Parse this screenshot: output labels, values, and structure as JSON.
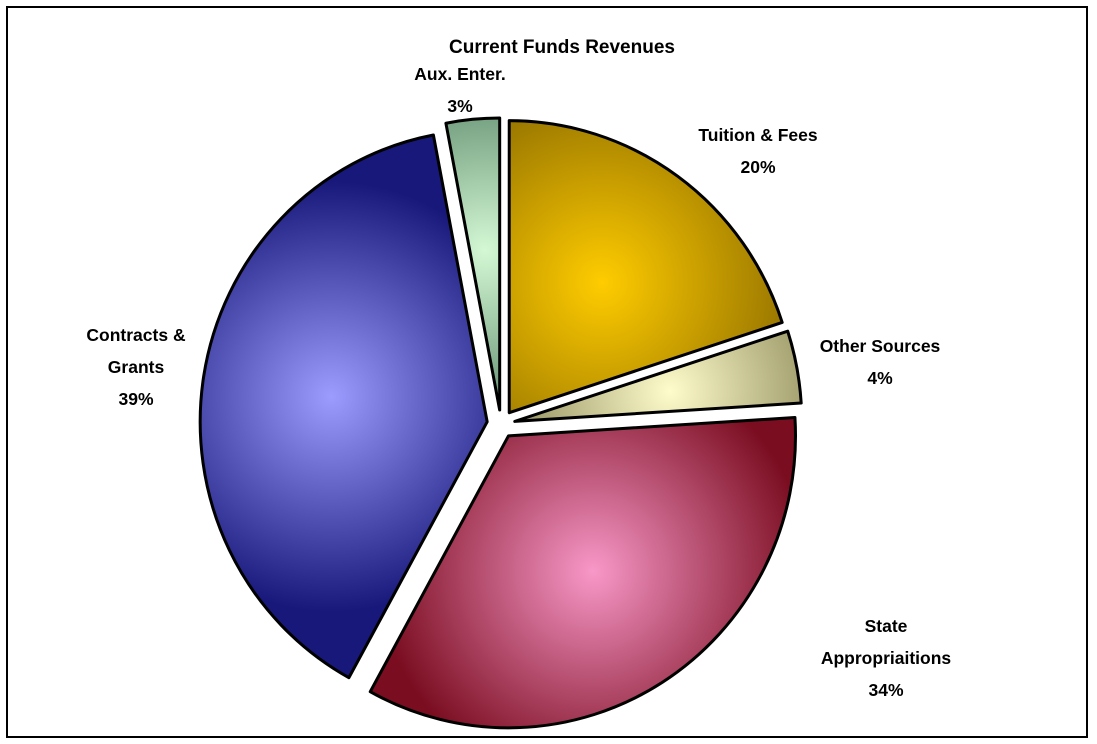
{
  "chart_data": {
    "type": "pie",
    "title": "Current Funds Revenues",
    "slices": [
      {
        "label": "Tuition & Fees",
        "percent_label": "20%",
        "value": 20,
        "color_dark": "#8a6a00",
        "color_light": "#ffcc00"
      },
      {
        "label": "Other Sources",
        "percent_label": "4%",
        "value": 4,
        "color_dark": "#6e6a3a",
        "color_light": "#fffccc"
      },
      {
        "label": "State Appropriaitions",
        "percent_label": "34%",
        "value": 34,
        "color_dark": "#7a0d20",
        "color_light": "#f898c8"
      },
      {
        "label": "Contracts & Grants",
        "percent_label": "39%",
        "value": 39,
        "color_dark": "#18187a",
        "color_light": "#9c9cff"
      },
      {
        "label": "Aux. Enter.",
        "percent_label": "3%",
        "value": 3,
        "color_dark": "#3f6e52",
        "color_light": "#d4f8d4"
      }
    ]
  }
}
